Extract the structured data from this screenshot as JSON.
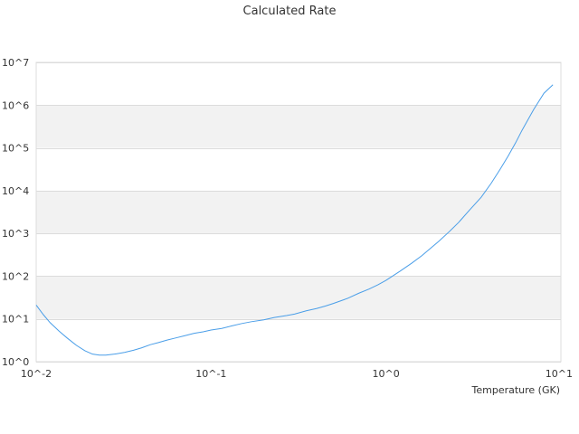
{
  "chart_data": {
    "type": "line",
    "title": "Calculated Rate",
    "xlabel": "Temperature (GK)",
    "ylabel": "",
    "x_scale": "log",
    "y_scale": "log",
    "xlim": [
      0.01,
      10
    ],
    "ylim": [
      1,
      10000000
    ],
    "x_ticks": [
      {
        "value": 0.01,
        "label": "10^-2"
      },
      {
        "value": 0.1,
        "label": "10^-1"
      },
      {
        "value": 1,
        "label": "10^0"
      },
      {
        "value": 10,
        "label": "10^1"
      }
    ],
    "y_ticks": [
      {
        "value": 1,
        "label": "10^0"
      },
      {
        "value": 10,
        "label": "10^1"
      },
      {
        "value": 100,
        "label": "10^2"
      },
      {
        "value": 1000,
        "label": "10^3"
      },
      {
        "value": 10000,
        "label": "10^4"
      },
      {
        "value": 100000,
        "label": "10^5"
      },
      {
        "value": 1000000,
        "label": "10^6"
      },
      {
        "value": 10000000,
        "label": "10^7"
      }
    ],
    "grid": true,
    "alternating_bands": true,
    "legend": "none",
    "colors": {
      "series": "#4a9ee8",
      "band": "#f2f2f2",
      "grid": "#dcdcdc",
      "text": "#333333"
    },
    "series": [
      {
        "x": [
          0.01,
          0.011,
          0.012,
          0.0135,
          0.015,
          0.017,
          0.019,
          0.021,
          0.023,
          0.025,
          0.028,
          0.032,
          0.036,
          0.04,
          0.045,
          0.05,
          0.056,
          0.063,
          0.07,
          0.08,
          0.09,
          0.1,
          0.115,
          0.13,
          0.15,
          0.17,
          0.2,
          0.23,
          0.27,
          0.3,
          0.35,
          0.4,
          0.45,
          0.5,
          0.6,
          0.7,
          0.8,
          0.9,
          1.0,
          1.2,
          1.4,
          1.6,
          1.8,
          2.0,
          2.3,
          2.6,
          3.0,
          3.5,
          4.0,
          4.5,
          5.0,
          5.5,
          6.0,
          7.0,
          8.0,
          9.0
        ],
        "y": [
          21,
          12.5,
          8.2,
          5.2,
          3.6,
          2.4,
          1.8,
          1.5,
          1.42,
          1.42,
          1.5,
          1.65,
          1.85,
          2.1,
          2.5,
          2.8,
          3.2,
          3.6,
          4.0,
          4.6,
          5.0,
          5.5,
          6.0,
          6.8,
          7.8,
          8.6,
          9.5,
          10.8,
          12.0,
          13.0,
          15.5,
          17.5,
          20.0,
          23.0,
          30.0,
          40.0,
          50.0,
          63.0,
          80.0,
          130,
          200,
          300,
          450,
          650,
          1100,
          1800,
          3500,
          7000,
          15000,
          32000,
          65000,
          130000,
          260000,
          800000,
          1900000,
          3000000
        ]
      }
    ]
  }
}
